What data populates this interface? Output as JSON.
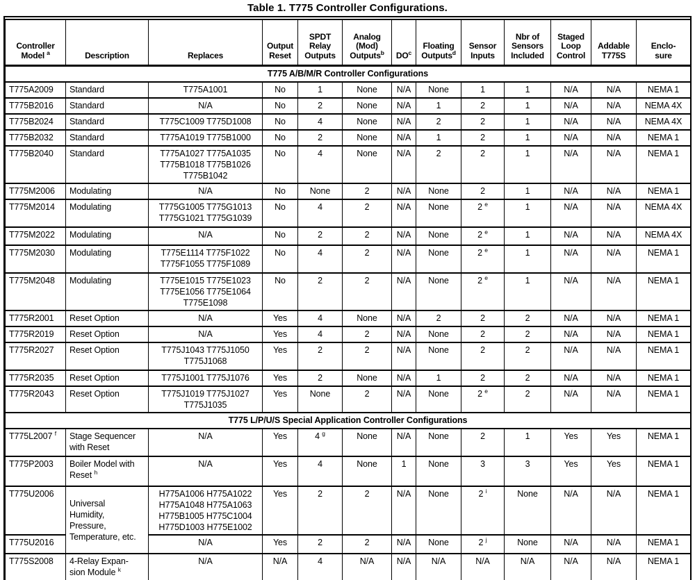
{
  "title": "Table 1. T775 Controller Configurations.",
  "table": {
    "columns": [
      {
        "id": "model",
        "label": "Controller\nModel ",
        "sup": "a"
      },
      {
        "id": "description",
        "label": "Description"
      },
      {
        "id": "replaces",
        "label": "Replaces"
      },
      {
        "id": "output-reset",
        "label": "Output\nReset"
      },
      {
        "id": "spdt-relay-outputs",
        "label": "SPDT\nRelay\nOutputs"
      },
      {
        "id": "analog-mod-outputs",
        "label": "Analog\n(Mod)\nOutputs",
        "sup": "b"
      },
      {
        "id": "do",
        "label": "DO",
        "sup": "c"
      },
      {
        "id": "floating-outputs",
        "label": "Floating\nOutputs",
        "sup": "d"
      },
      {
        "id": "sensor-inputs",
        "label": "Sensor\nInputs"
      },
      {
        "id": "nbr-sensors-included",
        "label": "Nbr of\nSensors\nIncluded"
      },
      {
        "id": "staged-loop-control",
        "label": "Staged\nLoop\nControl"
      },
      {
        "id": "addable-t775s",
        "label": "Addable\nT775S"
      },
      {
        "id": "enclosure",
        "label": "Enclo-\nsure"
      }
    ],
    "sections": [
      {
        "header": "T775 A/B/M/R Controller Configurations",
        "rows": [
          {
            "cells": [
              "T775A2009",
              "Standard",
              "T775A1001",
              "No",
              "1",
              "None",
              "N/A",
              "None",
              "1",
              "1",
              "N/A",
              "N/A",
              "NEMA 1"
            ]
          },
          {
            "cells": [
              "T775B2016",
              "Standard",
              "N/A",
              "No",
              "2",
              "None",
              "N/A",
              "1",
              "2",
              "1",
              "N/A",
              "N/A",
              "NEMA 4X"
            ]
          },
          {
            "cells": [
              "T775B2024",
              "Standard",
              "T775C1009  T775D1008",
              "No",
              "4",
              "None",
              "N/A",
              "2",
              "2",
              "1",
              "N/A",
              "N/A",
              "NEMA 4X"
            ]
          },
          {
            "cells": [
              "T775B2032",
              "Standard",
              "T775A1019  T775B1000",
              "No",
              "2",
              "None",
              "N/A",
              "1",
              "2",
              "1",
              "N/A",
              "N/A",
              "NEMA 1"
            ]
          },
          {
            "cells": [
              "T775B2040",
              "Standard",
              {
                "t": "T775A1027  T775A1035\nT775B1018  T775B1026\nT775B1042"
              },
              "No",
              "4",
              "None",
              "N/A",
              "2",
              "2",
              "1",
              "N/A",
              "N/A",
              "NEMA 1"
            ]
          },
          {
            "cells": [
              "T775M2006",
              "Modulating",
              "N/A",
              "No",
              "None",
              "2",
              "N/A",
              "None",
              "2",
              "1",
              "N/A",
              "N/A",
              "NEMA 1"
            ]
          },
          {
            "cells": [
              "T775M2014",
              "Modulating",
              {
                "t": "T775G1005  T775G1013\nT775G1021  T775G1039"
              },
              "No",
              "4",
              "2",
              "N/A",
              "None",
              {
                "t": "2 ",
                "sup": "e"
              },
              "1",
              "N/A",
              "N/A",
              "NEMA 4X"
            ]
          },
          {
            "cells": [
              "T775M2022",
              "Modulating",
              "N/A",
              "No",
              "2",
              "2",
              "N/A",
              "None",
              {
                "t": "2 ",
                "sup": "e"
              },
              "1",
              "N/A",
              "N/A",
              "NEMA 4X"
            ]
          },
          {
            "cells": [
              "T775M2030",
              "Modulating",
              {
                "t": "T775E1114  T775F1022\nT775F1055  T775F1089"
              },
              "No",
              "4",
              "2",
              "N/A",
              "None",
              {
                "t": "2 ",
                "sup": "e"
              },
              "1",
              "N/A",
              "N/A",
              "NEMA 1"
            ]
          },
          {
            "cells": [
              "T775M2048",
              "Modulating",
              {
                "t": "T775E1015  T775E1023\nT775E1056  T775E1064\nT775E1098"
              },
              "No",
              "2",
              "2",
              "N/A",
              "None",
              {
                "t": "2 ",
                "sup": "e"
              },
              "1",
              "N/A",
              "N/A",
              "NEMA 1"
            ]
          },
          {
            "cells": [
              "T775R2001",
              "Reset Option",
              "N/A",
              "Yes",
              "4",
              "None",
              "N/A",
              "2",
              "2",
              "2",
              "N/A",
              "N/A",
              "NEMA 1"
            ]
          },
          {
            "cells": [
              "T775R2019",
              "Reset Option",
              "N/A",
              "Yes",
              "4",
              "2",
              "N/A",
              "None",
              "2",
              "2",
              "N/A",
              "N/A",
              "NEMA 1"
            ]
          },
          {
            "cells": [
              "T775R2027",
              "Reset Option",
              {
                "t": "T775J1043  T775J1050\nT775J1068"
              },
              "Yes",
              "2",
              "2",
              "N/A",
              "None",
              "2",
              "2",
              "N/A",
              "N/A",
              "NEMA 1"
            ]
          },
          {
            "cells": [
              "T775R2035",
              "Reset Option",
              "T775J1001  T775J1076",
              "Yes",
              "2",
              "None",
              "N/A",
              "1",
              "2",
              "2",
              "N/A",
              "N/A",
              "NEMA 1"
            ]
          },
          {
            "cells": [
              "T775R2043",
              "Reset Option",
              {
                "t": "T775J1019  T775J1027\nT775J1035"
              },
              "Yes",
              "None",
              "2",
              "N/A",
              "None",
              {
                "t": "2 ",
                "sup": "e"
              },
              "2",
              "N/A",
              "N/A",
              "NEMA 1"
            ]
          }
        ]
      },
      {
        "header": "T775 L/P/U/S Special Application Controller Configurations",
        "rows": [
          {
            "cells": [
              {
                "t": "T775L2007 ",
                "sup": "f"
              },
              {
                "t": "Stage Sequencer\nwith Reset"
              },
              "N/A",
              "Yes",
              {
                "t": "4 ",
                "sup": "g"
              },
              "None",
              "N/A",
              "None",
              "2",
              "1",
              "Yes",
              "Yes",
              "NEMA 1"
            ]
          },
          {
            "cells": [
              "T775P2003",
              {
                "t": "Boiler Model with\nReset ",
                "sup": "h"
              },
              "N/A",
              "Yes",
              "4",
              "None",
              "1",
              "None",
              "3",
              "3",
              "Yes",
              "Yes",
              "NEMA 1"
            ]
          },
          {
            "cells": [
              "T775U2006",
              {
                "t": "Universal\nHumidity,\nPressure,\nTemperature, etc.",
                "rowspan": 2,
                "valign": "middle"
              },
              {
                "t": "H775A1006  H775A1022\nH775A1048  H775A1063\nH775B1005  H775C1004\nH775D1003  H775E1002"
              },
              "Yes",
              "2",
              "2",
              "N/A",
              "None",
              {
                "t": "2 ",
                "sup": "i"
              },
              "None",
              "N/A",
              "N/A",
              "NEMA 1"
            ]
          },
          {
            "cells": [
              "T775U2016",
              null,
              "N/A",
              "Yes",
              "2",
              "2",
              "N/A",
              "None",
              {
                "t": "2 ",
                "sup": "j"
              },
              "None",
              "N/A",
              "N/A",
              "NEMA 1"
            ]
          },
          {
            "cells": [
              "T775S2008",
              {
                "t": "4-Relay Expan-\nsion Module ",
                "sup": "k"
              },
              "N/A",
              "N/A",
              "4",
              "N/A",
              "N/A",
              "N/A",
              "N/A",
              "N/A",
              "N/A",
              "N/A",
              "NEMA 1"
            ]
          }
        ]
      }
    ]
  }
}
